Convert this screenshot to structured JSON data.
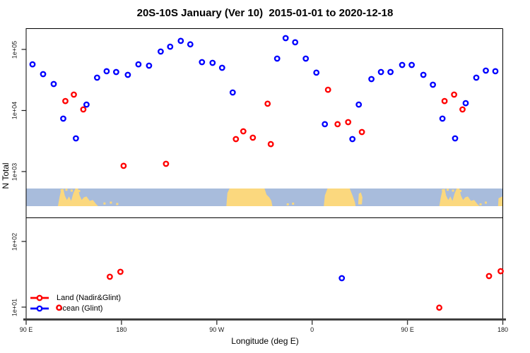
{
  "title": "20S-10S January (Ver 10)  2015-01-01 to 2020-12-18",
  "axes": {
    "y_label": "N Total",
    "x_label": "Longitude (deg E)",
    "x_ticks": [
      {
        "lon": 90,
        "label": "90 E"
      },
      {
        "lon": 180,
        "label": "180"
      },
      {
        "lon": 270,
        "label": "90 W"
      },
      {
        "lon": 360,
        "label": "0"
      },
      {
        "lon": 450,
        "label": "90 E"
      },
      {
        "lon": 540,
        "label": "180"
      }
    ],
    "y_ticks": [
      {
        "v": 100000,
        "label": "1e+05"
      },
      {
        "v": 10000,
        "label": "1e+04"
      },
      {
        "v": 1000,
        "label": "1e+03"
      },
      {
        "v": 100,
        "label": "1e+02"
      },
      {
        "v": 10,
        "label": "1e+01"
      }
    ]
  },
  "legend": {
    "items": [
      {
        "label": "Land (Nadir&Glint)",
        "color": "#ff0000"
      },
      {
        "label": "Ocean (Glint)",
        "color": "#0000ff"
      }
    ]
  },
  "colors": {
    "land_series": "#ff0000",
    "ocean_series": "#0000ff",
    "map_land": "#fbd87e",
    "map_ocean": "#a8bcdc",
    "axis_line": "#3f3f3f",
    "box_line": "#000000"
  },
  "chart_data": {
    "type": "scatter",
    "title": "20S-10S January (Ver 10)  2015-01-01 to 2020-12-18",
    "xlabel": "Longitude (deg E)",
    "ylabel": "N Total",
    "x_axis": {
      "start_deg": 90,
      "end_deg": 540,
      "note": "longitude increasing eastward, 90E wraps to 180 twice"
    },
    "y_axis": {
      "scale": "log10",
      "upper_panel_range": [
        1000,
        224000
      ],
      "lower_panel_range": [
        8,
        300
      ],
      "grid": false
    },
    "legend_position": "bottom-left",
    "series": [
      {
        "name": "Land (Nadir&Glint)",
        "color": "#ff0000",
        "points": [
          {
            "lon": 127,
            "n": 14300
          },
          {
            "lon": 135,
            "n": 18200
          },
          {
            "lon": 144,
            "n": 10400
          },
          {
            "lon": 182,
            "n": 1240
          },
          {
            "lon": 222,
            "n": 1340
          },
          {
            "lon": 288,
            "n": 3400
          },
          {
            "lon": 295,
            "n": 4560
          },
          {
            "lon": 304,
            "n": 3590
          },
          {
            "lon": 318,
            "n": 12900
          },
          {
            "lon": 321,
            "n": 2820
          },
          {
            "lon": 375,
            "n": 21900
          },
          {
            "lon": 384,
            "n": 5960
          },
          {
            "lon": 394,
            "n": 6440
          },
          {
            "lon": 407,
            "n": 4440
          },
          {
            "lon": 485,
            "n": 14300
          },
          {
            "lon": 494,
            "n": 18200
          },
          {
            "lon": 502,
            "n": 10400
          },
          {
            "lon": 121,
            "n": 9.8
          },
          {
            "lon": 169,
            "n": 29
          },
          {
            "lon": 179,
            "n": 34.5
          },
          {
            "lon": 480,
            "n": 9.8
          },
          {
            "lon": 527,
            "n": 29.7
          },
          {
            "lon": 538,
            "n": 35.3
          }
        ]
      },
      {
        "name": "Ocean (Glint)",
        "color": "#0000ff",
        "points": [
          {
            "lon": 96,
            "n": 57000
          },
          {
            "lon": 106,
            "n": 39400
          },
          {
            "lon": 116,
            "n": 27100
          },
          {
            "lon": 125,
            "n": 7360
          },
          {
            "lon": 137,
            "n": 3490
          },
          {
            "lon": 147,
            "n": 12500
          },
          {
            "lon": 157,
            "n": 34500
          },
          {
            "lon": 166,
            "n": 43900
          },
          {
            "lon": 175,
            "n": 42700
          },
          {
            "lon": 186,
            "n": 38400
          },
          {
            "lon": 196,
            "n": 57000
          },
          {
            "lon": 206,
            "n": 54200
          },
          {
            "lon": 217,
            "n": 92300
          },
          {
            "lon": 226,
            "n": 111000
          },
          {
            "lon": 236,
            "n": 138000
          },
          {
            "lon": 245,
            "n": 121000
          },
          {
            "lon": 256,
            "n": 61900
          },
          {
            "lon": 266,
            "n": 60300
          },
          {
            "lon": 275,
            "n": 50000
          },
          {
            "lon": 285,
            "n": 19700
          },
          {
            "lon": 327,
            "n": 70800
          },
          {
            "lon": 335,
            "n": 153000
          },
          {
            "lon": 344,
            "n": 131000
          },
          {
            "lon": 354,
            "n": 70800
          },
          {
            "lon": 364,
            "n": 41600
          },
          {
            "lon": 372,
            "n": 5960
          },
          {
            "lon": 398,
            "n": 3400
          },
          {
            "lon": 404,
            "n": 12500
          },
          {
            "lon": 416,
            "n": 32700
          },
          {
            "lon": 425,
            "n": 42700
          },
          {
            "lon": 434,
            "n": 42700
          },
          {
            "lon": 445,
            "n": 55700
          },
          {
            "lon": 454,
            "n": 55700
          },
          {
            "lon": 465,
            "n": 38400
          },
          {
            "lon": 474,
            "n": 26400
          },
          {
            "lon": 483,
            "n": 7360
          },
          {
            "lon": 495,
            "n": 3490
          },
          {
            "lon": 505,
            "n": 13200
          },
          {
            "lon": 515,
            "n": 34500
          },
          {
            "lon": 524,
            "n": 45000
          },
          {
            "lon": 533,
            "n": 43900
          },
          {
            "lon": 388,
            "n": 27.6
          }
        ]
      }
    ],
    "map_strip": {
      "description": "world land/ocean band for 20S-10S drawn between the two panels",
      "land_polys": [
        {
          "name": "newguinea-australia",
          "points": [
            [
              120,
              0
            ],
            [
              121.5,
              0.5
            ],
            [
              123,
              0.92
            ],
            [
              125,
              1
            ],
            [
              126.5,
              0.6
            ],
            [
              128.5,
              0.35
            ],
            [
              130.5,
              0.55
            ],
            [
              132.5,
              0.3
            ],
            [
              134.5,
              0.72
            ],
            [
              136.5,
              1
            ],
            [
              139,
              1
            ],
            [
              140.5,
              0.6
            ],
            [
              142.5,
              0.35
            ],
            [
              144.5,
              0.5
            ],
            [
              147,
              0.55
            ],
            [
              150,
              0.3
            ],
            [
              153,
              0.35
            ],
            [
              156,
              0.12
            ],
            [
              158,
              0
            ]
          ]
        },
        {
          "name": "south-america",
          "points": [
            [
              279,
              0
            ],
            [
              280,
              0.75
            ],
            [
              282,
              1
            ],
            [
              315,
              1
            ],
            [
              317,
              0.65
            ],
            [
              319.5,
              0.5
            ],
            [
              321.5,
              0.3
            ],
            [
              322.5,
              0
            ]
          ]
        },
        {
          "name": "africa",
          "points": [
            [
              371,
              0
            ],
            [
              372,
              0.6
            ],
            [
              374.5,
              1
            ],
            [
              395.5,
              1
            ],
            [
              398.5,
              0.55
            ],
            [
              400.5,
              0.2
            ],
            [
              401,
              0
            ]
          ]
        },
        {
          "name": "madagascar",
          "points": [
            [
              403.5,
              0.1
            ],
            [
              404,
              0.7
            ],
            [
              406,
              0.78
            ],
            [
              407.5,
              0.5
            ],
            [
              407,
              0.1
            ]
          ]
        },
        {
          "name": "newguinea-australia-repeat",
          "points": [
            [
              480,
              0
            ],
            [
              481.5,
              0.5
            ],
            [
              483,
              0.92
            ],
            [
              485,
              1
            ],
            [
              486.5,
              0.6
            ],
            [
              488.5,
              0.35
            ],
            [
              490.5,
              0.55
            ],
            [
              492.5,
              0.3
            ],
            [
              494.5,
              0.72
            ],
            [
              496.5,
              1
            ],
            [
              499,
              1
            ],
            [
              500.5,
              0.6
            ],
            [
              502.5,
              0.35
            ],
            [
              504.5,
              0.5
            ],
            [
              507,
              0.55
            ],
            [
              510,
              0.3
            ],
            [
              513,
              0.35
            ],
            [
              516,
              0.12
            ],
            [
              518,
              0
            ]
          ]
        },
        {
          "name": "melanesia-right-edge",
          "points": [
            [
              535.5,
              0
            ],
            [
              536,
              0.45
            ],
            [
              538,
              0.5
            ],
            [
              539.5,
              0.55
            ],
            [
              540,
              0.45
            ],
            [
              540,
              0
            ]
          ]
        }
      ],
      "islands": [
        {
          "lon": 123.5,
          "frac": 0.9
        },
        {
          "lon": 128,
          "frac": 0.93
        },
        {
          "lon": 133,
          "frac": 0.88
        },
        {
          "lon": 140,
          "frac": 0.86
        },
        {
          "lon": 164,
          "frac": 0.15
        },
        {
          "lon": 170,
          "frac": 0.2
        },
        {
          "lon": 176,
          "frac": 0.12
        },
        {
          "lon": 337,
          "frac": 0.1
        },
        {
          "lon": 342,
          "frac": 0.14
        },
        {
          "lon": 483.5,
          "frac": 0.9
        },
        {
          "lon": 488,
          "frac": 0.93
        },
        {
          "lon": 493,
          "frac": 0.88
        },
        {
          "lon": 500,
          "frac": 0.86
        },
        {
          "lon": 519,
          "frac": 0.1
        },
        {
          "lon": 524,
          "frac": 0.2
        }
      ]
    }
  }
}
